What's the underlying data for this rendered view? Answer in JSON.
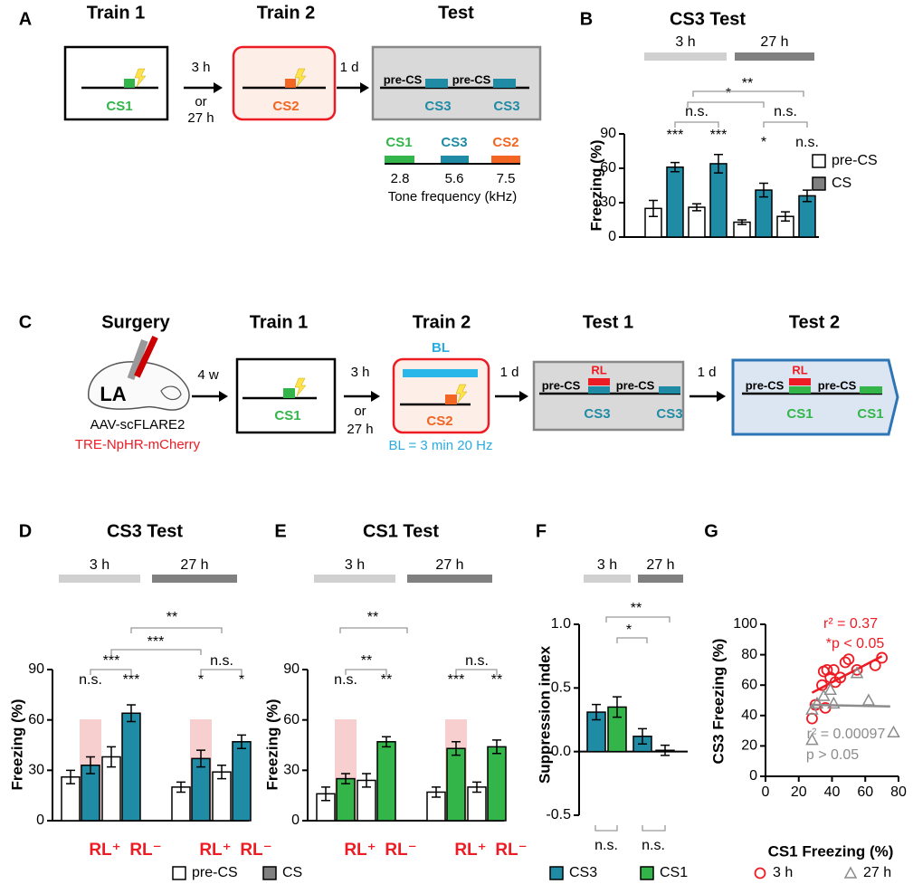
{
  "panel_a": {
    "label": "A",
    "steps": [
      "Train 1",
      "Train 2",
      "Test"
    ],
    "train1_cs": "CS1",
    "train2_cs": "CS2",
    "interval": [
      "3 h",
      "or",
      "27 h"
    ],
    "delay": "1 d",
    "test_segments": [
      "pre-CS",
      "CS3",
      "pre-CS",
      "CS3"
    ],
    "tone_legend": {
      "names": [
        "CS1",
        "CS3",
        "CS2"
      ],
      "frequencies": [
        2.8,
        5.6,
        7.5
      ],
      "axis_label": "Tone frequency (kHz)"
    }
  },
  "panel_c": {
    "label": "C",
    "steps": [
      "Surgery",
      "Train 1",
      "Train 2",
      "Test 1",
      "Test 2"
    ],
    "region": "LA",
    "virus": [
      "AAV-scFLARE2",
      "TRE-NpHR-mCherry"
    ],
    "intervals": [
      "4 w",
      "3 h",
      "or",
      "27 h",
      "1 d",
      "1 d"
    ],
    "train1_cs": "CS1",
    "train2_cs": "CS2",
    "bl": "BL",
    "bl_note": "BL = 3 min 20 Hz",
    "test1": [
      "pre-CS",
      "RL",
      "CS3",
      "pre-CS",
      "CS3"
    ],
    "test2": [
      "pre-CS",
      "RL",
      "CS1",
      "pre-CS",
      "CS1"
    ]
  },
  "chart_data": [
    {
      "panel": "B",
      "type": "bar",
      "title": "CS3 Test",
      "ylabel": "Freezing (%)",
      "groups": [
        "3 h",
        "27 h"
      ],
      "group_colors": [
        "#d0d0d0",
        "#808080"
      ],
      "series": [
        {
          "name": "pre-CS",
          "color": "#ffffff",
          "legend_color": "#ffffff",
          "values": [
            25,
            26,
            13,
            18
          ],
          "errors": [
            7,
            3,
            2,
            4
          ]
        },
        {
          "name": "CS",
          "color": "#1f8ba5",
          "legend_color": "#808080",
          "values": [
            61,
            64,
            41,
            36
          ],
          "errors": [
            4,
            8,
            6,
            5
          ]
        }
      ],
      "ylim": [
        0,
        90
      ],
      "yticks": [
        0,
        30,
        60,
        90
      ],
      "legend": "right",
      "annotations": [
        "***",
        "n.s.",
        "***",
        "*",
        "n.s.",
        "n.s.",
        "*",
        "**"
      ]
    },
    {
      "panel": "D",
      "type": "bar",
      "title": "CS3 Test",
      "ylabel": "Freezing (%)",
      "groups": [
        "3 h",
        "27 h"
      ],
      "group_colors": [
        "#d0d0d0",
        "#808080"
      ],
      "categories": [
        "RL⁺",
        "RL⁻",
        "RL⁺",
        "RL⁻"
      ],
      "category_color": "#ed1c24",
      "shaded": [
        0,
        2
      ],
      "shade_color": "#f8cfcf",
      "series": [
        {
          "name": "pre-CS",
          "color": "#ffffff",
          "legend_color": "#ffffff",
          "values": [
            26,
            38,
            20,
            29
          ],
          "errors": [
            4,
            6,
            3,
            4
          ]
        },
        {
          "name": "CS",
          "color": "#1f8ba5",
          "legend_color": "#808080",
          "values": [
            33,
            64,
            37,
            47
          ],
          "errors": [
            5,
            5,
            5,
            4
          ]
        }
      ],
      "ylim": [
        0,
        90
      ],
      "yticks": [
        0,
        30,
        60,
        90
      ],
      "legend": "bottom",
      "annotations": [
        "n.s.",
        "***",
        "***",
        "***",
        "**",
        "*",
        "n.s.",
        "*"
      ]
    },
    {
      "panel": "E",
      "type": "bar",
      "title": "CS1 Test",
      "ylabel": "Freezing (%)",
      "groups": [
        "3 h",
        "27 h"
      ],
      "group_colors": [
        "#d0d0d0",
        "#808080"
      ],
      "categories": [
        "RL⁺",
        "RL⁻",
        "RL⁺",
        "RL⁻"
      ],
      "category_color": "#ed1c24",
      "shaded": [
        0,
        2
      ],
      "shade_color": "#f8cfcf",
      "series": [
        {
          "color": "#ffffff",
          "values": [
            16,
            24,
            17,
            20
          ],
          "errors": [
            4,
            4,
            3,
            3
          ]
        },
        {
          "color": "#33b54a",
          "values": [
            25,
            47,
            43,
            44
          ],
          "errors": [
            3,
            3,
            4,
            4
          ]
        }
      ],
      "ylim": [
        0,
        90
      ],
      "yticks": [
        0,
        30,
        60,
        90
      ],
      "annotations": [
        "n.s.",
        "**",
        "**",
        "**",
        "***",
        "n.s.",
        "**"
      ]
    },
    {
      "panel": "F",
      "type": "bar",
      "ylabel": "Suppression index",
      "groups": [
        "3 h",
        "27 h"
      ],
      "group_colors": [
        "#d0d0d0",
        "#808080"
      ],
      "series": [
        {
          "name": "CS3",
          "color": "#1f8ba5",
          "legend_color": "#1f8ba5",
          "values": [
            0.31,
            0.12
          ],
          "errors": [
            0.06,
            0.06
          ]
        },
        {
          "name": "CS1",
          "color": "#33b54a",
          "legend_color": "#33b54a",
          "values": [
            0.35,
            0.01
          ],
          "errors": [
            0.08,
            0.04
          ]
        }
      ],
      "ylim": [
        -0.5,
        1.0
      ],
      "yticks": [
        -0.5,
        {
          "value": 0,
          "label": "0.0"
        },
        0.5,
        {
          "value": 1,
          "label": "1.0"
        }
      ],
      "legend": "bottom",
      "annotations": [
        "**",
        "*",
        "n.s.",
        "n.s."
      ]
    },
    {
      "panel": "G",
      "type": "scatter",
      "xlabel": "CS1 Freezing (%)",
      "ylabel": "CS3 Freezing (%)",
      "xlim": [
        0,
        80
      ],
      "xticks": [
        0,
        20,
        40,
        60,
        80
      ],
      "ylim": [
        0,
        100
      ],
      "yticks": [
        0,
        20,
        40,
        60,
        80,
        100
      ],
      "series": [
        {
          "name": "3 h",
          "color": "#ed1c24",
          "marker": "circle",
          "x": [
            28,
            30,
            34,
            35,
            36,
            37,
            39,
            41,
            42,
            45,
            48,
            50,
            55,
            66,
            70
          ],
          "values": [
            38,
            47,
            60,
            69,
            45,
            70,
            65,
            70,
            62,
            65,
            75,
            77,
            70,
            73,
            78
          ],
          "fit_x": [
            28,
            70
          ],
          "fit_y": [
            55,
            79
          ]
        },
        {
          "name": "27 h",
          "color": "#8c8c8c",
          "marker": "triangle",
          "x": [
            28,
            28,
            31,
            35,
            39,
            41,
            55,
            62,
            77
          ],
          "values": [
            24,
            44,
            48,
            53,
            57,
            48,
            68,
            50,
            29
          ],
          "fit_x": [
            28,
            75
          ],
          "fit_y": [
            47,
            46
          ]
        }
      ],
      "legend": "bottom",
      "annotations": [
        "r² = 0.37",
        "*p < 0.05",
        "r² = 0.00097",
        "p > 0.05"
      ],
      "annotation_colors": [
        "#ed1c24",
        "#ed1c24",
        "#8c8c8c",
        "#8c8c8c"
      ]
    }
  ]
}
